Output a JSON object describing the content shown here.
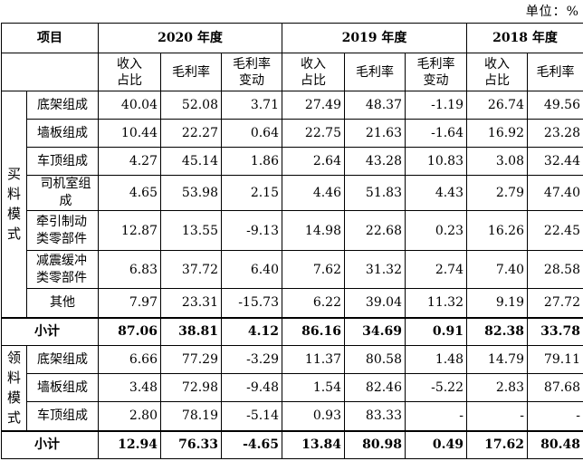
{
  "unit_label": "单位：%",
  "header": {
    "item": "项目",
    "years": [
      "2020 年度",
      "2019 年度",
      "2018 年度"
    ],
    "col_share": "收入占比",
    "col_share_l1": "收入",
    "col_share_l2": "占比",
    "col_margin": "毛利率",
    "col_change_l1": "毛利率",
    "col_change_l2": "变动"
  },
  "groups": [
    {
      "name": "买料模式",
      "chars": [
        "买",
        "料",
        "模",
        "式"
      ],
      "rows": [
        {
          "label": [
            "底架组成"
          ],
          "v": [
            "40.04",
            "52.08",
            "3.71",
            "27.49",
            "48.37",
            "-1.19",
            "26.74",
            "49.56"
          ]
        },
        {
          "label": [
            "墙板组成"
          ],
          "v": [
            "10.44",
            "22.27",
            "0.64",
            "22.75",
            "21.63",
            "-1.64",
            "16.92",
            "23.28"
          ]
        },
        {
          "label": [
            "车顶组成"
          ],
          "v": [
            "4.27",
            "45.14",
            "1.86",
            "2.64",
            "43.28",
            "10.83",
            "3.08",
            "32.44"
          ]
        },
        {
          "label": [
            "司机室组",
            "成"
          ],
          "v": [
            "4.65",
            "53.98",
            "2.15",
            "4.46",
            "51.83",
            "4.43",
            "2.79",
            "47.40"
          ]
        },
        {
          "label": [
            "牵引制动",
            "类零部件"
          ],
          "v": [
            "12.87",
            "13.55",
            "-9.13",
            "14.98",
            "22.68",
            "0.23",
            "16.26",
            "22.45"
          ]
        },
        {
          "label": [
            "减震缓冲",
            "类零部件"
          ],
          "v": [
            "6.83",
            "37.72",
            "6.40",
            "7.62",
            "31.32",
            "2.74",
            "7.40",
            "28.58"
          ]
        },
        {
          "label": [
            "其他"
          ],
          "v": [
            "7.97",
            "23.31",
            "-15.73",
            "6.22",
            "39.04",
            "11.32",
            "9.19",
            "27.72"
          ]
        }
      ],
      "subtotal": {
        "label": "小计",
        "v": [
          "87.06",
          "38.81",
          "4.12",
          "86.16",
          "34.69",
          "0.91",
          "82.38",
          "33.78"
        ]
      }
    },
    {
      "name": "领料模式",
      "chars": [
        "领",
        "料",
        "模",
        "式"
      ],
      "rows": [
        {
          "label": [
            "底架组成"
          ],
          "v": [
            "6.66",
            "77.29",
            "-3.29",
            "11.37",
            "80.58",
            "1.48",
            "14.79",
            "79.11"
          ]
        },
        {
          "label": [
            "墙板组成"
          ],
          "v": [
            "3.48",
            "72.98",
            "-9.48",
            "1.54",
            "82.46",
            "-5.22",
            "2.83",
            "87.68"
          ]
        },
        {
          "label": [
            "车顶组成"
          ],
          "v": [
            "2.80",
            "78.19",
            "-5.14",
            "0.93",
            "83.33",
            "-",
            "-",
            "-"
          ]
        }
      ],
      "subtotal": {
        "label": "小计",
        "v": [
          "12.94",
          "76.33",
          "-4.65",
          "13.84",
          "80.98",
          "0.49",
          "17.62",
          "80.48"
        ]
      }
    }
  ]
}
